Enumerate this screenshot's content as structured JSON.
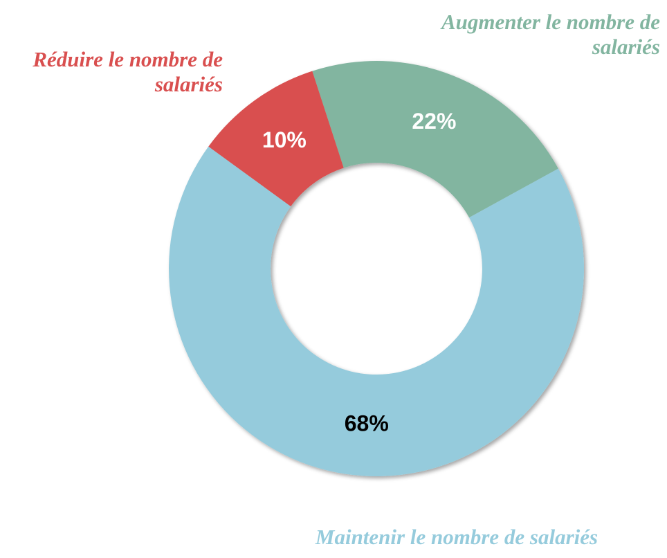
{
  "chart_data": {
    "type": "donut",
    "categories": [
      "Augmenter le nombre de salariés",
      "Maintenir le nombre de salariés",
      "Réduire le nombre de salariés"
    ],
    "values": [
      22,
      68,
      10
    ],
    "value_labels": [
      "22%",
      "68%",
      "10%"
    ],
    "colors": [
      "#82b5a0",
      "#95cbdc",
      "#d94f4f"
    ]
  }
}
